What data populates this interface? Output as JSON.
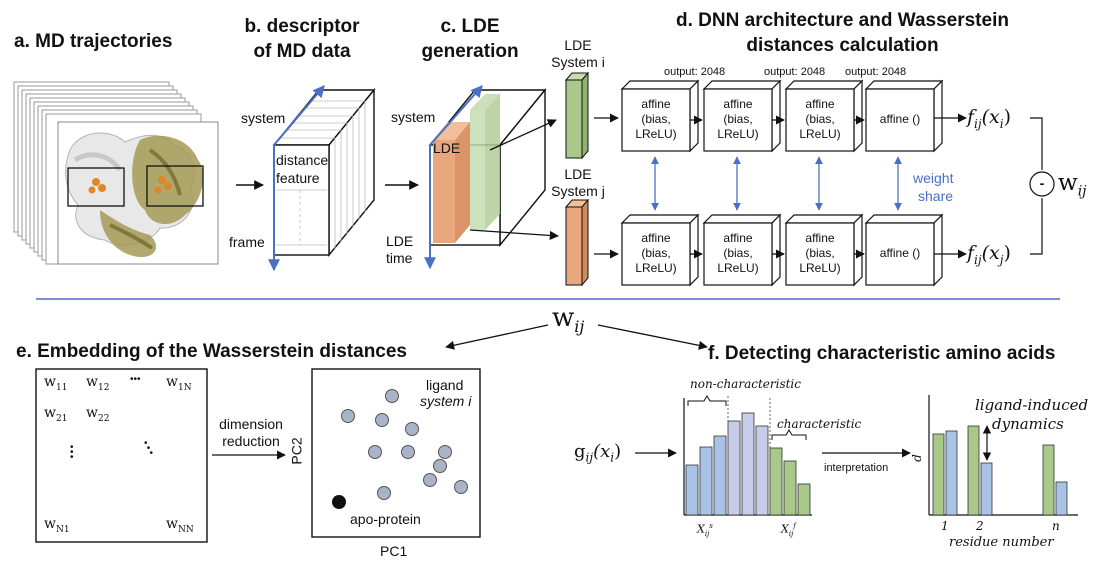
{
  "panels": {
    "a": {
      "title": "a. MD trajectories"
    },
    "b": {
      "title_line1": "b. descriptor",
      "title_line2": "of MD data",
      "system": "system",
      "distance": "distance",
      "feature": "feature",
      "frame": "frame"
    },
    "c": {
      "title_line1": "c. LDE",
      "title_line2": "generation",
      "system": "system",
      "lde": "LDE",
      "lde_time_1": "LDE",
      "lde_time_2": "time"
    },
    "d": {
      "title_line1": "d. DNN architecture and Wasserstein",
      "title_line2": "distances calculation",
      "lde_sys_i_1": "LDE",
      "lde_sys_i_2": "System i",
      "lde_sys_j_1": "LDE",
      "lde_sys_j_2": "System j",
      "outputs": [
        "output: 2048",
        "output: 2048",
        "output: 2048"
      ],
      "affine_box": [
        "affine",
        "(bias,",
        "LReLU)"
      ],
      "affine_last": "affine ()",
      "weight_share_1": "weight",
      "weight_share_2": "share",
      "f_i": "f",
      "f_i_sub": "ij",
      "f_i_arg": "(x",
      "f_i_argsub": "i",
      "f_j_argsub": "j",
      "minus": "-",
      "w": "w",
      "w_sub": "ij"
    },
    "center": {
      "w": "w",
      "w_sub": "ij"
    },
    "e": {
      "title": "e. Embedding of the Wasserstein distances",
      "matrix": [
        {
          "base": "w",
          "sub": "11"
        },
        {
          "base": "w",
          "sub": "12"
        },
        {
          "base": "w",
          "sub": "1N"
        },
        {
          "base": "w",
          "sub": "21"
        },
        {
          "base": "w",
          "sub": "22"
        },
        {
          "base": "w",
          "sub": "N1"
        },
        {
          "base": "w",
          "sub": "NN"
        }
      ],
      "hdots": "•••",
      "dimension": "dimension",
      "reduction": "reduction",
      "pc1": "PC1",
      "pc2": "PC2",
      "ligand_1": "ligand",
      "ligand_2": "system i",
      "apo": "apo-protein"
    },
    "f": {
      "title": "f. Detecting characteristic amino acids",
      "g": "g",
      "g_sub": "ij",
      "g_arg": "(x",
      "g_argsub": "i",
      "non_char": "non-characteristic",
      "char": "characteristic",
      "interpretation": "interpretation",
      "xs": "X",
      "xs_sub": "ij",
      "xs_sup": "s",
      "xf_sup": "f",
      "ligand_induced": "ligand-induced",
      "dynamics": "dynamics",
      "d_axis": "d",
      "res_ticks": [
        "1",
        "2",
        "n"
      ],
      "residue_number": "residue number"
    }
  },
  "colors": {
    "blue": "#4a6fc4",
    "green": "#a9c98a",
    "orange": "#e8a77c",
    "light_blue": "#a9c3e6",
    "lavender": "#c7cde8",
    "dot": "#a9b4c8"
  }
}
